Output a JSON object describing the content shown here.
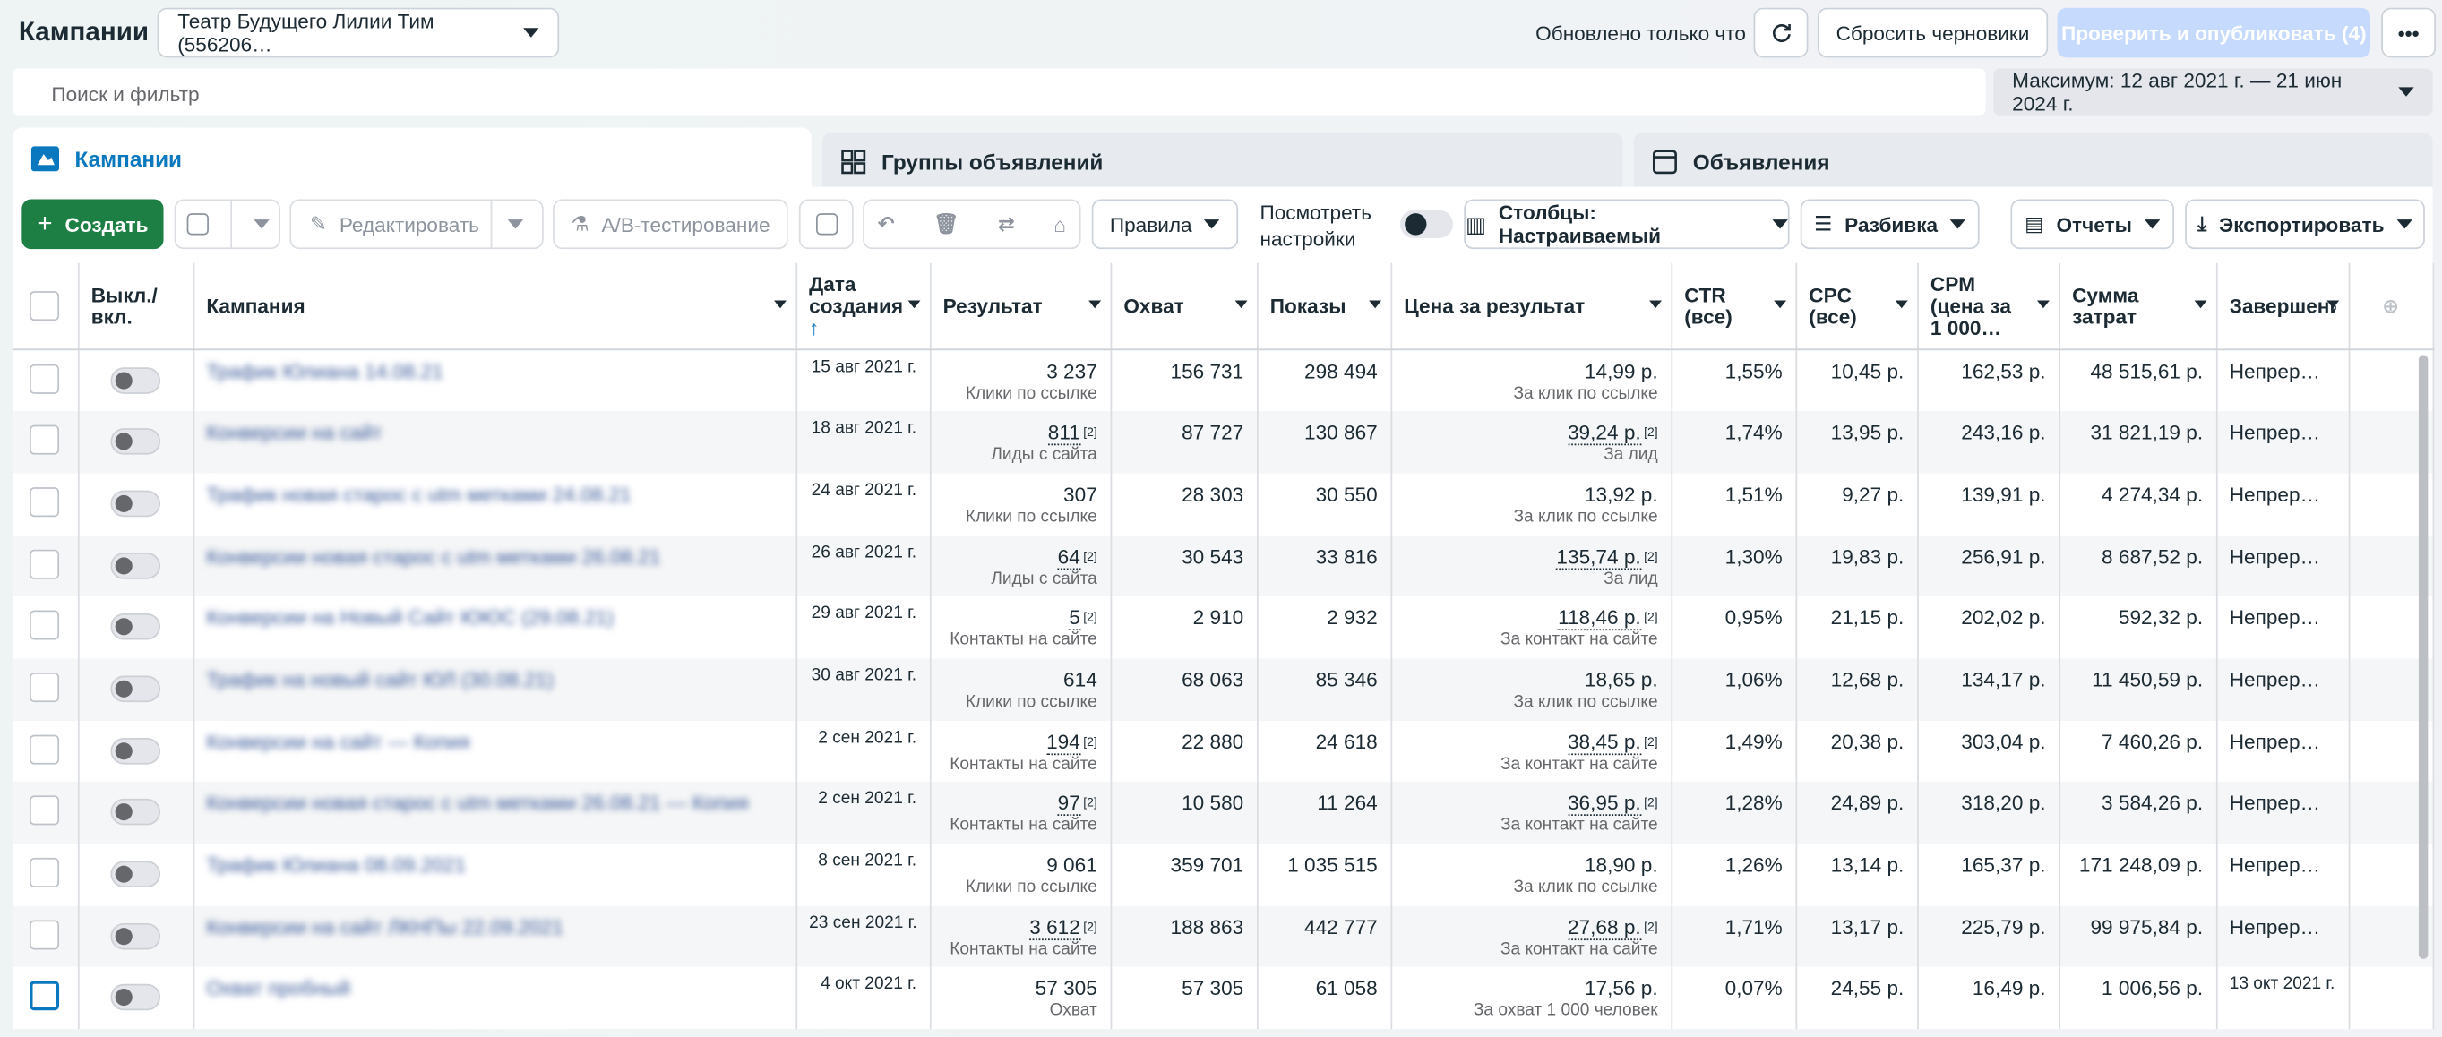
{
  "header": {
    "title": "Кампании",
    "account": "Театр Будущего Лилии Тим (556206…",
    "status": "Обновлено только что",
    "reset": "Сбросить черновики",
    "publish": "Проверить и опубликовать (4)"
  },
  "search": {
    "placeholder": "Поиск и фильтр",
    "date_range": "Максимум: 12 авг 2021 г. — 21 июн 2024 г."
  },
  "tabs": [
    "Кампании",
    "Группы объявлений",
    "Объявления"
  ],
  "toolbar": {
    "create": "Создать",
    "edit": "Редактировать",
    "ab_test": "A/B-тестирование",
    "rules": "Правила",
    "view_settings": "Посмотреть настройки",
    "columns": "Столбцы: Настраиваемый",
    "breakdown": "Разбивка",
    "reports": "Отчеты",
    "export": "Экспортировать"
  },
  "table": {
    "columns": [
      "Выкл./вкл.",
      "Кампания",
      "Дата создания",
      "Результат",
      "Охват",
      "Показы",
      "Цена за результат",
      "CTR (все)",
      "CPC (все)",
      "CPM (цена за 1 000…",
      "Сумма затрат",
      "Завершение"
    ],
    "rows": [
      {
        "name": "Трафик Юлиана 14.08.21",
        "created": "15 авг 2021 г.",
        "result": "3 237",
        "result_type": "Клики по ссылке",
        "reach": "156 731",
        "impressions": "298 494",
        "cost": "14,99 р.",
        "cost_type": "За клик по ссылке",
        "ctr": "1,55%",
        "cpc": "10,45 р.",
        "cpm": "162,53 р.",
        "spent": "48 515,61 р.",
        "ends": "Непрерывно"
      },
      {
        "name": "Конверсии на сайт",
        "created": "18 авг 2021 г.",
        "result": "811",
        "result_note": "[2]",
        "result_type": "Лиды с сайта",
        "reach": "87 727",
        "impressions": "130 867",
        "cost": "39,24 р.",
        "cost_note": "[2]",
        "cost_type": "За лид",
        "ctr": "1,74%",
        "cpc": "13,95 р.",
        "cpm": "243,16 р.",
        "spent": "31 821,19 р.",
        "ends": "Непрерывно"
      },
      {
        "name": "Трафик новая старос с utm метками 24.08.21",
        "created": "24 авг 2021 г.",
        "result": "307",
        "result_type": "Клики по ссылке",
        "reach": "28 303",
        "impressions": "30 550",
        "cost": "13,92 р.",
        "cost_type": "За клик по ссылке",
        "ctr": "1,51%",
        "cpc": "9,27 р.",
        "cpm": "139,91 р.",
        "spent": "4 274,34 р.",
        "ends": "Непрерывно"
      },
      {
        "name": "Конверсии новая старос с utm метками 26.08.21",
        "created": "26 авг 2021 г.",
        "result": "64",
        "result_note": "[2]",
        "result_type": "Лиды с сайта",
        "reach": "30 543",
        "impressions": "33 816",
        "cost": "135,74 р.",
        "cost_note": "[2]",
        "cost_type": "За лид",
        "ctr": "1,30%",
        "cpc": "19,83 р.",
        "cpm": "256,91 р.",
        "spent": "8 687,52 р.",
        "ends": "Непрерывно"
      },
      {
        "name": "Конверсии на Новый Сайт ЮЮС (29.08.21)",
        "created": "29 авг 2021 г.",
        "result": "5",
        "result_note": "[2]",
        "result_type": "Контакты на сайте",
        "reach": "2 910",
        "impressions": "2 932",
        "cost": "118,46 р.",
        "cost_note": "[2]",
        "cost_type": "За контакт на сайте",
        "ctr": "0,95%",
        "cpc": "21,15 р.",
        "cpm": "202,02 р.",
        "spent": "592,32 р.",
        "ends": "Непрерывно"
      },
      {
        "name": "Трафик на новый сайт ЮЛ (30.08.21)",
        "created": "30 авг 2021 г.",
        "result": "614",
        "result_type": "Клики по ссылке",
        "reach": "68 063",
        "impressions": "85 346",
        "cost": "18,65 р.",
        "cost_type": "За клик по ссылке",
        "ctr": "1,06%",
        "cpc": "12,68 р.",
        "cpm": "134,17 р.",
        "spent": "11 450,59 р.",
        "ends": "Непрерывно"
      },
      {
        "name": "Конверсии на сайт — Копия",
        "created": "2 сен 2021 г.",
        "result": "194",
        "result_note": "[2]",
        "result_type": "Контакты на сайте",
        "reach": "22 880",
        "impressions": "24 618",
        "cost": "38,45 р.",
        "cost_note": "[2]",
        "cost_type": "За контакт на сайте",
        "ctr": "1,49%",
        "cpc": "20,38 р.",
        "cpm": "303,04 р.",
        "spent": "7 460,26 р.",
        "ends": "Непрерывно"
      },
      {
        "name": "Конверсии новая старос с utm метками 26.08.21 — Копия",
        "created": "2 сен 2021 г.",
        "result": "97",
        "result_note": "[2]",
        "result_type": "Контакты на сайте",
        "reach": "10 580",
        "impressions": "11 264",
        "cost": "36,95 р.",
        "cost_note": "[2]",
        "cost_type": "За контакт на сайте",
        "ctr": "1,28%",
        "cpc": "24,89 р.",
        "cpm": "318,20 р.",
        "spent": "3 584,26 р.",
        "ends": "Непрерывно"
      },
      {
        "name": "Трафик Юлиана 08.09.2021",
        "created": "8 сен 2021 г.",
        "result": "9 061",
        "result_type": "Клики по ссылке",
        "reach": "359 701",
        "impressions": "1 035 515",
        "cost": "18,90 р.",
        "cost_type": "За клик по ссылке",
        "ctr": "1,26%",
        "cpc": "13,14 р.",
        "cpm": "165,37 р.",
        "spent": "171 248,09 р.",
        "ends": "Непрерывно"
      },
      {
        "name": "Конверсии на сайт ЛКНПы 22.09.2021",
        "created": "23 сен 2021 г.",
        "result": "3 612",
        "result_note": "[2]",
        "result_type": "Контакты на сайте",
        "reach": "188 863",
        "impressions": "442 777",
        "cost": "27,68 р.",
        "cost_note": "[2]",
        "cost_type": "За контакт на сайте",
        "ctr": "1,71%",
        "cpc": "13,17 р.",
        "cpm": "225,79 р.",
        "spent": "99 975,84 р.",
        "ends": "Непрерывно"
      },
      {
        "name": "Охват пробный",
        "created": "4 окт 2021 г.",
        "result": "57 305",
        "result_type": "Охват",
        "reach": "57 305",
        "impressions": "61 058",
        "cost": "17,56 р.",
        "cost_type": "За охват 1 000 человек",
        "ctr": "0,07%",
        "cpc": "24,55 р.",
        "cpm": "16,49 р.",
        "spent": "1 006,56 р.",
        "ends": "13 окт 2021 г."
      }
    ]
  }
}
